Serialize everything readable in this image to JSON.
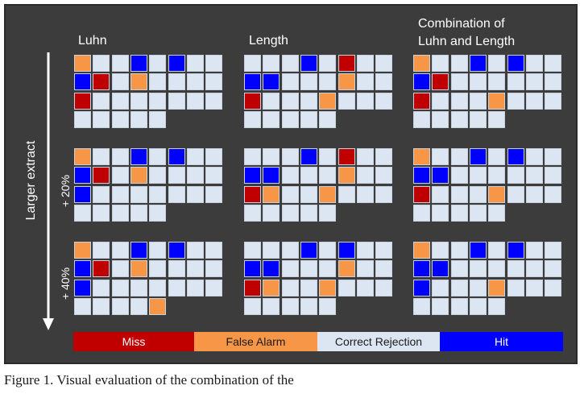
{
  "column_titles": [
    "Luhn",
    "Length",
    "Combination of\nLuhn and Length"
  ],
  "row_labels": [
    "",
    "+ 20%",
    "+ 40%"
  ],
  "axis_label": "Larger extract",
  "colors": {
    "miss": "#c00000",
    "false_alarm": "#f79646",
    "correct_rejection": "#dce6f2",
    "hit": "#0000ff",
    "panel_bg": "#3c3c3c"
  },
  "legend": [
    {
      "key": "miss",
      "label": "Miss",
      "text_color": "#ffffff"
    },
    {
      "key": "false_alarm",
      "label": "False Alarm",
      "text_color": "#1a1a1a"
    },
    {
      "key": "correct_rejection",
      "label": "Correct Rejection",
      "text_color": "#1a1a1a"
    },
    {
      "key": "hit",
      "label": "Hit",
      "text_color": "#ffffff"
    }
  ],
  "grid_code_key": {
    "C": "correct_rejection",
    "F": "false_alarm",
    "H": "hit",
    "M": "miss",
    ".": "empty"
  },
  "grids": [
    [
      [
        "FCCHCHCC",
        "HMCFCCCC",
        "MCCCCCCC",
        "CCCCC..."
      ],
      [
        "CCCHCMCC",
        "HHCCCFCC",
        "MCCCFCCC",
        "CCCCC..."
      ],
      [
        "FCCHCHCC",
        "HMCCCCCC",
        "MCCCFCCC",
        "CCCCC..."
      ]
    ],
    [
      [
        "FCCHCHCC",
        "HMCFCCCC",
        "HCCCCCCC",
        "CCCCC..."
      ],
      [
        "CCCHCMCC",
        "HHCCCFCC",
        "MFCCFCCC",
        "CCCCC..."
      ],
      [
        "FCCHCHCC",
        "HHCCCCCC",
        "MCCCFCCC",
        "CCCCC..."
      ]
    ],
    [
      [
        "FCCHCHCC",
        "HMCFCCCC",
        "HCCCCCCC",
        "CCCCF..."
      ],
      [
        "CCCHCHCC",
        "HHCCCFCC",
        "MFCCFCCC",
        "CCCCC..."
      ],
      [
        "FCCHCHCC",
        "HHCCCCCC",
        "HCCCFCCC",
        "CCCCC..."
      ]
    ]
  ],
  "caption": "Figure 1. Visual evaluation of the combination of the"
}
